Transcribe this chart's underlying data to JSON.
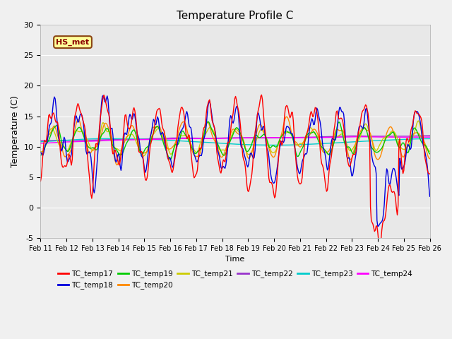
{
  "title": "Temperature Profile C",
  "xlabel": "Time",
  "ylabel": "Temperature (C)",
  "ylim": [
    -5,
    30
  ],
  "annotation_text": "HS_met",
  "annotation_bg": "#ffff99",
  "annotation_border": "#8B4513",
  "plot_bg": "#e8e8e8",
  "fig_bg": "#f0f0f0",
  "series_colors": {
    "TC_temp17": "#ff0000",
    "TC_temp18": "#0000dd",
    "TC_temp19": "#00cc00",
    "TC_temp20": "#ff8800",
    "TC_temp21": "#cccc00",
    "TC_temp22": "#9933cc",
    "TC_temp23": "#00cccc",
    "TC_temp24": "#ff00ff"
  },
  "xtick_labels": [
    "Feb 11",
    "Feb 12",
    "Feb 13",
    "Feb 14",
    "Feb 15",
    "Feb 16",
    "Feb 17",
    "Feb 18",
    "Feb 19",
    "Feb 20",
    "Feb 21",
    "Feb 22",
    "Feb 23",
    "Feb 24",
    "Feb 25",
    "Feb 26"
  ],
  "yticks": [
    -5,
    0,
    5,
    10,
    15,
    20,
    25,
    30
  ],
  "num_points": 480,
  "days": 15
}
